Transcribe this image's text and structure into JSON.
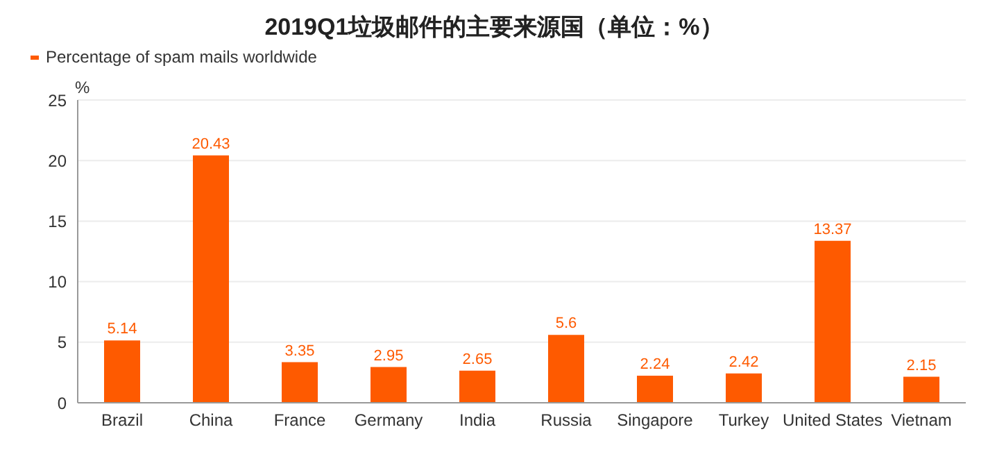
{
  "chart_data": {
    "type": "bar",
    "title": "2019Q1垃圾邮件的主要来源国（单位：%）",
    "ylabel": "%",
    "categories": [
      "Brazil",
      "China",
      "France",
      "Germany",
      "India",
      "Russia",
      "Singapore",
      "Turkey",
      "United States",
      "Vietnam"
    ],
    "series": [
      {
        "name": "Percentage of spam mails worldwide",
        "color": "#fe5a00",
        "values": [
          5.14,
          20.43,
          3.35,
          2.95,
          2.65,
          5.6,
          2.24,
          2.42,
          13.37,
          2.15
        ]
      }
    ],
    "ylim": [
      0,
      25
    ],
    "yticks": [
      0,
      5,
      10,
      15,
      20,
      25
    ],
    "grid": "y",
    "legend": "top left",
    "data_labels": true
  }
}
